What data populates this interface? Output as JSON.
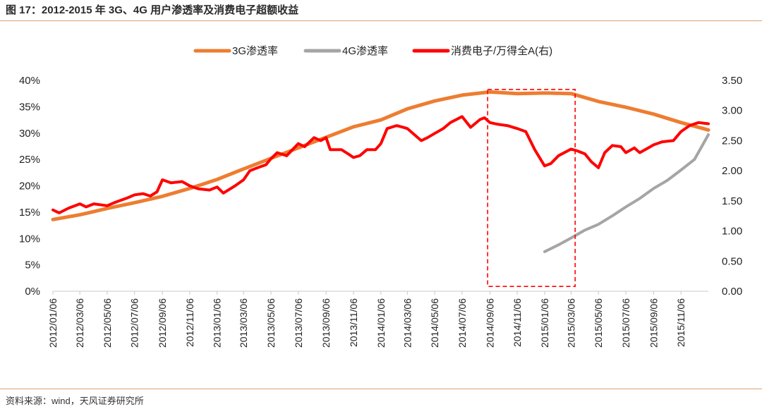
{
  "figure": {
    "title": "图 17：2012-2015 年 3G、4G 用户渗透率及消费电子超额收益",
    "source": "资料来源：wind，天风证券研究所"
  },
  "chart_data": {
    "type": "line",
    "x_ticks": [
      "2012/01/06",
      "2012/03/06",
      "2012/05/06",
      "2012/07/06",
      "2012/09/06",
      "2012/11/06",
      "2013/01/06",
      "2013/03/06",
      "2013/05/06",
      "2013/07/06",
      "2013/09/06",
      "2013/11/06",
      "2014/01/06",
      "2014/03/06",
      "2014/05/06",
      "2014/07/06",
      "2014/09/06",
      "2014/11/06",
      "2015/01/06",
      "2015/03/06",
      "2015/05/06",
      "2015/07/06",
      "2015/09/06",
      "2015/11/06"
    ],
    "x_range": [
      "2012/01/06",
      "2016/01/06"
    ],
    "y_left": {
      "ticks": [
        "0%",
        "5%",
        "10%",
        "15%",
        "20%",
        "25%",
        "30%",
        "35%",
        "40%"
      ],
      "range": [
        0,
        40
      ]
    },
    "y_right": {
      "ticks": [
        "0.00",
        "0.50",
        "1.00",
        "1.50",
        "2.00",
        "2.50",
        "3.00",
        "3.50"
      ],
      "range": [
        0,
        3.5
      ]
    },
    "legend_position": "top-center",
    "series": [
      {
        "name": "3G渗透率",
        "axis": "left",
        "color": "#ED7D31",
        "points": [
          [
            "2012/01/06",
            13.6
          ],
          [
            "2012/03/06",
            14.5
          ],
          [
            "2012/05/06",
            15.7
          ],
          [
            "2012/07/06",
            16.8
          ],
          [
            "2012/09/06",
            18.0
          ],
          [
            "2012/11/06",
            19.5
          ],
          [
            "2013/01/06",
            21.2
          ],
          [
            "2013/03/06",
            23.2
          ],
          [
            "2013/05/06",
            25.2
          ],
          [
            "2013/07/06",
            27.2
          ],
          [
            "2013/09/06",
            29.2
          ],
          [
            "2013/11/06",
            31.2
          ],
          [
            "2014/01/06",
            32.5
          ],
          [
            "2014/03/06",
            34.6
          ],
          [
            "2014/05/06",
            36.1
          ],
          [
            "2014/07/06",
            37.2
          ],
          [
            "2014/09/06",
            37.8
          ],
          [
            "2014/11/06",
            37.5
          ],
          [
            "2015/01/06",
            37.6
          ],
          [
            "2015/03/06",
            37.5
          ],
          [
            "2015/05/06",
            36.0
          ],
          [
            "2015/07/06",
            34.9
          ],
          [
            "2015/09/06",
            33.6
          ],
          [
            "2015/11/06",
            32.0
          ],
          [
            "2016/01/06",
            30.6
          ]
        ]
      },
      {
        "name": "4G渗透率",
        "axis": "left",
        "color": "#A5A5A5",
        "points": [
          [
            "2015/01/06",
            7.5
          ],
          [
            "2015/02/06",
            8.8
          ],
          [
            "2015/03/06",
            10.1
          ],
          [
            "2015/04/06",
            11.6
          ],
          [
            "2015/05/06",
            12.7
          ],
          [
            "2015/06/06",
            14.3
          ],
          [
            "2015/07/06",
            16.0
          ],
          [
            "2015/08/06",
            17.6
          ],
          [
            "2015/09/06",
            19.5
          ],
          [
            "2015/10/06",
            21.0
          ],
          [
            "2015/11/06",
            23.0
          ],
          [
            "2015/12/06",
            25.0
          ],
          [
            "2016/01/06",
            29.7
          ]
        ]
      },
      {
        "name": "消费电子/万得全A(右)",
        "axis": "right",
        "color": "#FF0000",
        "points": [
          [
            "2012/01/06",
            1.35
          ],
          [
            "2012/01/20",
            1.3
          ],
          [
            "2012/02/10",
            1.38
          ],
          [
            "2012/03/06",
            1.45
          ],
          [
            "2012/03/20",
            1.4
          ],
          [
            "2012/04/06",
            1.45
          ],
          [
            "2012/05/06",
            1.42
          ],
          [
            "2012/05/25",
            1.48
          ],
          [
            "2012/06/20",
            1.55
          ],
          [
            "2012/07/06",
            1.6
          ],
          [
            "2012/07/25",
            1.62
          ],
          [
            "2012/08/10",
            1.58
          ],
          [
            "2012/08/25",
            1.65
          ],
          [
            "2012/09/06",
            1.85
          ],
          [
            "2012/09/25",
            1.8
          ],
          [
            "2012/10/20",
            1.82
          ],
          [
            "2012/11/06",
            1.75
          ],
          [
            "2012/11/25",
            1.7
          ],
          [
            "2012/12/20",
            1.68
          ],
          [
            "2013/01/06",
            1.73
          ],
          [
            "2013/01/20",
            1.63
          ],
          [
            "2013/02/15",
            1.75
          ],
          [
            "2013/03/06",
            1.85
          ],
          [
            "2013/03/20",
            2.0
          ],
          [
            "2013/04/06",
            2.05
          ],
          [
            "2013/04/25",
            2.1
          ],
          [
            "2013/05/06",
            2.2
          ],
          [
            "2013/05/20",
            2.3
          ],
          [
            "2013/06/10",
            2.25
          ],
          [
            "2013/07/06",
            2.45
          ],
          [
            "2013/07/20",
            2.4
          ],
          [
            "2013/08/10",
            2.55
          ],
          [
            "2013/08/25",
            2.5
          ],
          [
            "2013/09/06",
            2.55
          ],
          [
            "2013/09/15",
            2.35
          ],
          [
            "2013/10/10",
            2.35
          ],
          [
            "2013/10/25",
            2.28
          ],
          [
            "2013/11/06",
            2.22
          ],
          [
            "2013/11/20",
            2.25
          ],
          [
            "2013/12/06",
            2.35
          ],
          [
            "2013/12/25",
            2.35
          ],
          [
            "2014/01/06",
            2.45
          ],
          [
            "2014/01/20",
            2.7
          ],
          [
            "2014/02/10",
            2.75
          ],
          [
            "2014/02/25",
            2.72
          ],
          [
            "2014/03/06",
            2.7
          ],
          [
            "2014/04/06",
            2.5
          ],
          [
            "2014/04/20",
            2.55
          ],
          [
            "2014/05/06",
            2.62
          ],
          [
            "2014/05/25",
            2.7
          ],
          [
            "2014/06/10",
            2.8
          ],
          [
            "2014/07/06",
            2.9
          ],
          [
            "2014/07/25",
            2.72
          ],
          [
            "2014/08/15",
            2.85
          ],
          [
            "2014/08/25",
            2.88
          ],
          [
            "2014/09/06",
            2.8
          ],
          [
            "2014/09/25",
            2.77
          ],
          [
            "2014/10/15",
            2.75
          ],
          [
            "2014/11/06",
            2.7
          ],
          [
            "2014/11/25",
            2.65
          ],
          [
            "2014/12/15",
            2.35
          ],
          [
            "2015/01/06",
            2.08
          ],
          [
            "2015/01/20",
            2.12
          ],
          [
            "2015/02/06",
            2.25
          ],
          [
            "2015/03/06",
            2.36
          ],
          [
            "2015/03/20",
            2.33
          ],
          [
            "2015/04/06",
            2.28
          ],
          [
            "2015/04/20",
            2.15
          ],
          [
            "2015/05/06",
            2.05
          ],
          [
            "2015/05/20",
            2.3
          ],
          [
            "2015/06/06",
            2.42
          ],
          [
            "2015/06/25",
            2.4
          ],
          [
            "2015/07/06",
            2.3
          ],
          [
            "2015/07/25",
            2.38
          ],
          [
            "2015/08/06",
            2.3
          ],
          [
            "2015/08/25",
            2.38
          ],
          [
            "2015/09/06",
            2.43
          ],
          [
            "2015/09/25",
            2.48
          ],
          [
            "2015/10/20",
            2.5
          ],
          [
            "2015/11/06",
            2.65
          ],
          [
            "2015/11/25",
            2.75
          ],
          [
            "2015/12/15",
            2.8
          ],
          [
            "2016/01/06",
            2.78
          ]
        ]
      }
    ],
    "annotation": {
      "type": "dashed-box",
      "color": "#FF0000",
      "from": "2014/09/01",
      "to": "2015/03/15",
      "y_top": 3.35,
      "y_bottom": 0.08
    }
  }
}
